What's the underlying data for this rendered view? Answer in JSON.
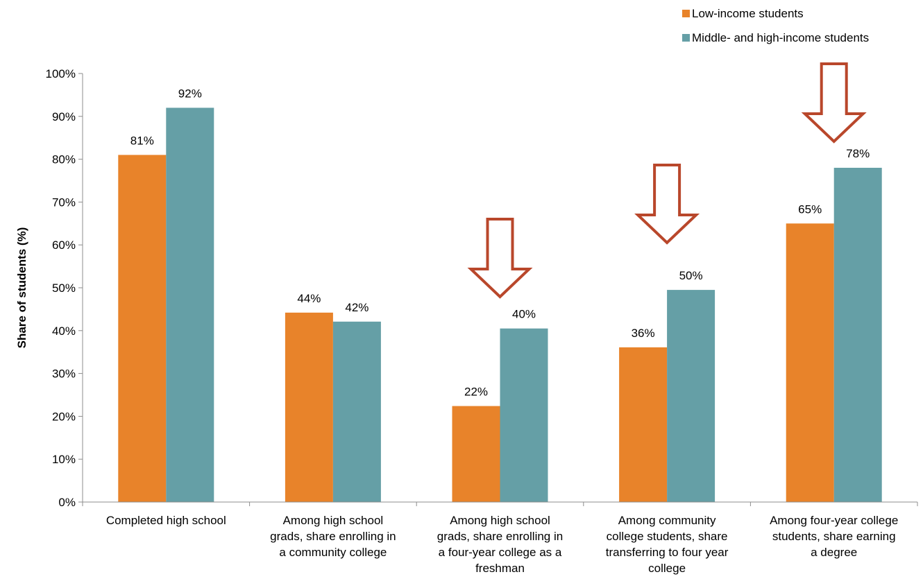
{
  "chart_data": {
    "type": "bar",
    "ylabel": "Share of students (%)",
    "ylim": [
      0,
      100
    ],
    "y_ticks": [
      "0%",
      "10%",
      "20%",
      "30%",
      "40%",
      "50%",
      "60%",
      "70%",
      "80%",
      "90%",
      "100%"
    ],
    "grid": false,
    "legend_position": "top-right",
    "categories": [
      [
        "Completed high school"
      ],
      [
        "Among high school",
        "grads, share enrolling in",
        "a community college"
      ],
      [
        "Among high school",
        "grads, share enrolling in",
        "a four-year college as a",
        "freshman"
      ],
      [
        "Among community",
        "college students, share",
        "transferring to four year",
        "college"
      ],
      [
        "Among four-year college",
        "students, share earning",
        "a degree"
      ]
    ],
    "series": [
      {
        "name": "Low-income students",
        "color": "#E8832A",
        "values": [
          81,
          44.2,
          22.4,
          36.1,
          65
        ],
        "labels": [
          "81%",
          "44%",
          "22%",
          "36%",
          "65%"
        ]
      },
      {
        "name": "Middle- and high-income students",
        "color": "#659FA6",
        "values": [
          92,
          42.1,
          40.5,
          49.5,
          78
        ],
        "labels": [
          "92%",
          "42%",
          "40%",
          "50%",
          "78%"
        ]
      }
    ],
    "annotations": {
      "arrow_icon": "down-arrow-outline-icon",
      "arrow_color": "#B9472B",
      "arrow_categories": [
        2,
        3,
        4
      ]
    }
  }
}
